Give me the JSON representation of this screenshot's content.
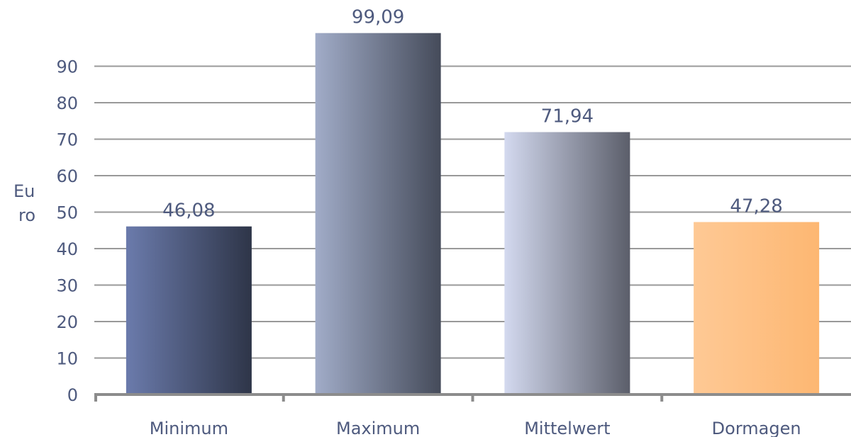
{
  "chart_data": {
    "type": "bar",
    "title": "",
    "xlabel": "",
    "ylabel": "Euro",
    "ylabel_lines": [
      "Eu",
      "ro"
    ],
    "ylim": [
      0,
      100
    ],
    "yticks": [
      0,
      10,
      20,
      30,
      40,
      50,
      60,
      70,
      80,
      90
    ],
    "ytick_labels": [
      "0",
      "10",
      "20",
      "30",
      "40",
      "50",
      "60",
      "70",
      "80",
      "90"
    ],
    "grid": true,
    "legend": "none",
    "categories": [
      "Minimum",
      "Maximum",
      "Mittelwert",
      "Dormagen"
    ],
    "values": [
      46.08,
      99.09,
      71.94,
      47.28
    ],
    "value_labels": [
      "46,08",
      "99,09",
      "71,94",
      "47,28"
    ],
    "bar_gradients": [
      [
        "#6b7bac",
        "#2e3548"
      ],
      [
        "#a1acc8",
        "#454b5a"
      ],
      [
        "#d3d9ef",
        "#5b5e6a"
      ],
      [
        "#fec995",
        "#fdb772"
      ]
    ],
    "colors": {
      "text": "#4e5a7e",
      "grid": "#999999",
      "axis": "#8c8c8c"
    }
  }
}
